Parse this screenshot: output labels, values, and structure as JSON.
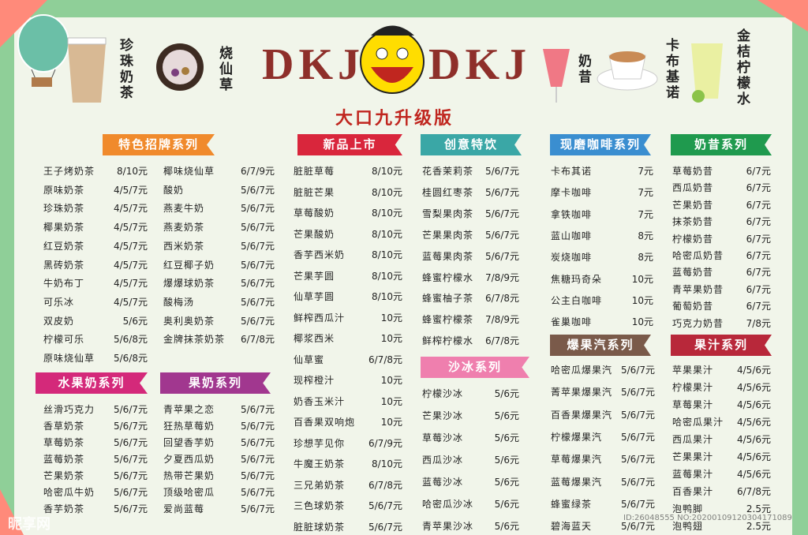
{
  "header": {
    "brand_left": "DKJ",
    "brand_right": "DKJ",
    "subtitle": "大口九升级版",
    "photo_labels": [
      "珍珠奶茶",
      "烧仙草",
      "奶昔",
      "卡布基诺",
      "金桔柠檬水"
    ]
  },
  "sections": [
    {
      "title": "特色招牌系列",
      "items": [
        [
          "王子烤奶茶",
          "8/10元"
        ],
        [
          "原味奶茶",
          "4/5/7元"
        ],
        [
          "珍珠奶茶",
          "4/5/7元"
        ],
        [
          "椰果奶茶",
          "4/5/7元"
        ],
        [
          "红豆奶茶",
          "4/5/7元"
        ],
        [
          "黑砖奶茶",
          "4/5/7元"
        ],
        [
          "牛奶布丁",
          "4/5/7元"
        ],
        [
          "可乐冰",
          "4/5/7元"
        ],
        [
          "双皮奶",
          "5/6元"
        ],
        [
          "柠檬可乐",
          "5/6/8元"
        ],
        [
          "原味烧仙草",
          "5/6/8元"
        ],
        [
          "椰味烧仙草",
          "6/7/9元"
        ],
        [
          "酸奶",
          "5/6/7元"
        ],
        [
          "燕麦牛奶",
          "5/6/7元"
        ],
        [
          "燕麦奶茶",
          "5/6/7元"
        ],
        [
          "西米奶茶",
          "5/6/7元"
        ],
        [
          "红豆椰子奶",
          "5/6/7元"
        ],
        [
          "爆爆球奶茶",
          "5/6/7元"
        ],
        [
          "酸梅汤",
          "5/6/7元"
        ],
        [
          "奥利奥奶茶",
          "5/6/7元"
        ],
        [
          "金牌抹茶奶茶",
          "6/7/8元"
        ]
      ]
    },
    {
      "title": "水果奶系列",
      "items": [
        [
          "丝滑巧克力",
          "5/6/7元"
        ],
        [
          "香草奶茶",
          "5/6/7元"
        ],
        [
          "草莓奶茶",
          "5/6/7元"
        ],
        [
          "蓝莓奶茶",
          "5/6/7元"
        ],
        [
          "芒果奶茶",
          "5/6/7元"
        ],
        [
          "哈密瓜牛奶",
          "5/6/7元"
        ],
        [
          "香芋奶茶",
          "5/6/7元"
        ]
      ]
    },
    {
      "title": "果奶系列",
      "items": [
        [
          "青苹果之恋",
          "5/6/7元"
        ],
        [
          "狂热草莓奶",
          "5/6/7元"
        ],
        [
          "回望香芋奶",
          "5/6/7元"
        ],
        [
          "夕夏西瓜奶",
          "5/6/7元"
        ],
        [
          "热带芒果奶",
          "5/6/7元"
        ],
        [
          "顶级哈密瓜",
          "5/6/7元"
        ],
        [
          "爱尚蓝莓",
          "5/6/7元"
        ]
      ]
    },
    {
      "title": "新品上市",
      "items": [
        [
          "脏脏草莓",
          "8/10元"
        ],
        [
          "脏脏芒果",
          "8/10元"
        ],
        [
          "草莓酸奶",
          "8/10元"
        ],
        [
          "芒果酸奶",
          "8/10元"
        ],
        [
          "香芋西米奶",
          "8/10元"
        ],
        [
          "芒果芋圆",
          "8/10元"
        ],
        [
          "仙草芋圆",
          "8/10元"
        ],
        [
          "鲜榨西瓜汁",
          "10元"
        ],
        [
          "椰浆西米",
          "10元"
        ],
        [
          "仙草蜜",
          "6/7/8元"
        ],
        [
          "现榨橙汁",
          "10元"
        ],
        [
          "奶香玉米汁",
          "10元"
        ],
        [
          "百香果双响炮",
          "10元"
        ],
        [
          "珍想芋见你",
          "6/7/9元"
        ],
        [
          "牛魔王奶茶",
          "8/10元"
        ],
        [
          "三兄弟奶茶",
          "6/7/8元"
        ],
        [
          "三色球奶茶",
          "5/6/7元"
        ],
        [
          "脏脏球奶茶",
          "5/6/7元"
        ]
      ]
    },
    {
      "title": "创意特饮",
      "items": [
        [
          "花香茉莉茶",
          "5/6/7元"
        ],
        [
          "桂圆红枣茶",
          "5/6/7元"
        ],
        [
          "雪梨果肉茶",
          "5/6/7元"
        ],
        [
          "芒果果肉茶",
          "5/6/7元"
        ],
        [
          "蓝莓果肉茶",
          "5/6/7元"
        ],
        [
          "蜂蜜柠檬水",
          "7/8/9元"
        ],
        [
          "蜂蜜柚子茶",
          "6/7/8元"
        ],
        [
          "蜂蜜柠檬茶",
          "7/8/9元"
        ],
        [
          "鲜榨柠檬水",
          "6/7/8元"
        ]
      ]
    },
    {
      "title": "沙冰系列",
      "items": [
        [
          "柠檬沙冰",
          "5/6元"
        ],
        [
          "芒果沙冰",
          "5/6元"
        ],
        [
          "草莓沙冰",
          "5/6元"
        ],
        [
          "西瓜沙冰",
          "5/6元"
        ],
        [
          "蓝莓沙冰",
          "5/6元"
        ],
        [
          "哈密瓜沙冰",
          "5/6元"
        ],
        [
          "青苹果沙冰",
          "5/6元"
        ]
      ]
    },
    {
      "title": "现磨咖啡系列",
      "items": [
        [
          "卡布其诺",
          "7元"
        ],
        [
          "摩卡咖啡",
          "7元"
        ],
        [
          "拿铁咖啡",
          "7元"
        ],
        [
          "蓝山咖啡",
          "8元"
        ],
        [
          "炭烧咖啡",
          "8元"
        ],
        [
          "焦糖玛奇朵",
          "10元"
        ],
        [
          "公主白咖啡",
          "10元"
        ],
        [
          "雀巢咖啡",
          "10元"
        ]
      ]
    },
    {
      "title": "爆果汽系列",
      "items": [
        [
          "哈密瓜爆果汽",
          "5/6/7元"
        ],
        [
          "菁苹果爆果汽",
          "5/6/7元"
        ],
        [
          "百香果爆果汽",
          "5/6/7元"
        ],
        [
          "柠檬爆果汽",
          "5/6/7元"
        ],
        [
          "草莓爆果汽",
          "5/6/7元"
        ],
        [
          "蓝莓爆果汽",
          "5/6/7元"
        ],
        [
          "蜂蜜绿茶",
          "5/6/7元"
        ],
        [
          "碧海蓝天",
          "5/6/7元"
        ]
      ]
    },
    {
      "title": "奶昔系列",
      "items": [
        [
          "草莓奶昔",
          "6/7元"
        ],
        [
          "西瓜奶昔",
          "6/7元"
        ],
        [
          "芒果奶昔",
          "6/7元"
        ],
        [
          "抹茶奶昔",
          "6/7元"
        ],
        [
          "柠檬奶昔",
          "6/7元"
        ],
        [
          "哈密瓜奶昔",
          "6/7元"
        ],
        [
          "蓝莓奶昔",
          "6/7元"
        ],
        [
          "青苹果奶昔",
          "6/7元"
        ],
        [
          "葡萄奶昔",
          "6/7元"
        ],
        [
          "巧克力奶昔",
          "7/8元"
        ]
      ]
    },
    {
      "title": "果汁系列",
      "items": [
        [
          "苹果果汁",
          "4/5/6元"
        ],
        [
          "柠檬果汁",
          "4/5/6元"
        ],
        [
          "草莓果汁",
          "4/5/6元"
        ],
        [
          "哈密瓜果汁",
          "4/5/6元"
        ],
        [
          "西瓜果汁",
          "4/5/6元"
        ],
        [
          "芒果果汁",
          "4/5/6元"
        ],
        [
          "蓝莓果汁",
          "4/5/6元"
        ],
        [
          "百香果汁",
          "6/7/8元"
        ],
        [
          "泡鸭脚",
          "2.5元"
        ],
        [
          "泡鸭翅",
          "2.5元"
        ]
      ]
    }
  ],
  "watermark": [
    "昵享网",
    "ID:26048555 NO:20200109120304171089"
  ]
}
